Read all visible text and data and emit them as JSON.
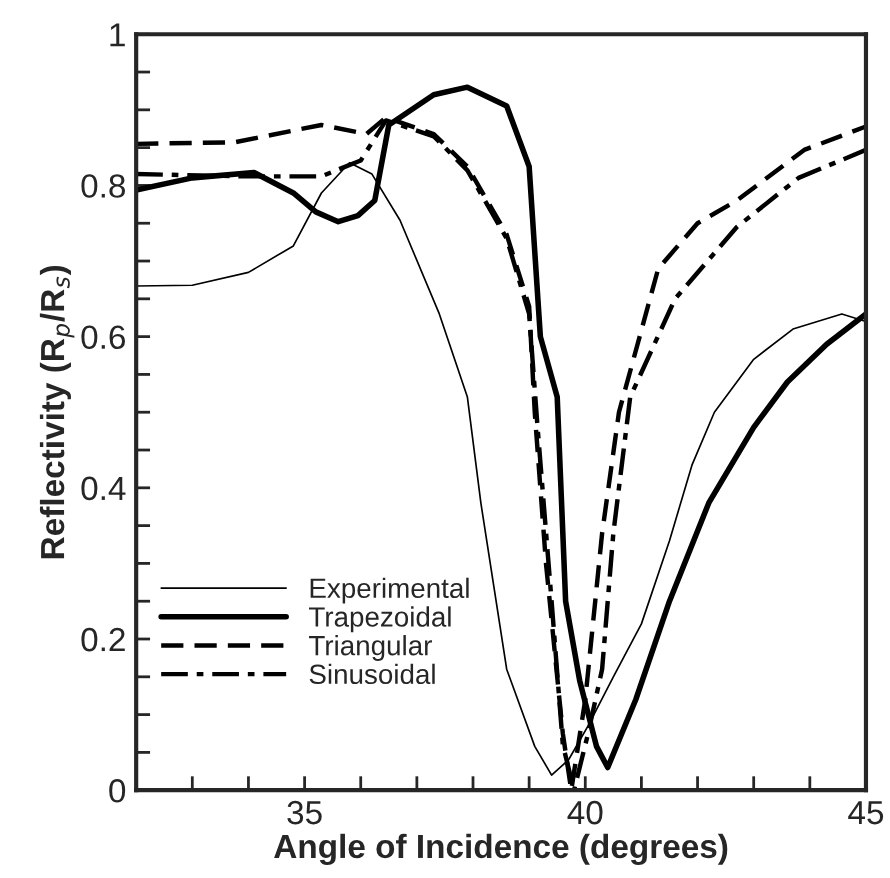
{
  "chart_data": {
    "type": "line",
    "xlabel": "Angle of Incidence (degrees)",
    "ylabel": "Reflectivity (R$_{p}$/R$_{s}$)",
    "xlim": [
      32,
      45
    ],
    "ylim": [
      0,
      1
    ],
    "xticks": [
      {
        "value": 33,
        "label": null
      },
      {
        "value": 34,
        "label": null
      },
      35,
      {
        "value": 36,
        "label": null
      },
      {
        "value": 37,
        "label": null
      },
      {
        "value": 38,
        "label": null
      },
      {
        "value": 39,
        "label": null
      },
      40,
      {
        "value": 41,
        "label": null
      },
      {
        "value": 42,
        "label": null
      },
      {
        "value": 43,
        "label": null
      },
      {
        "value": 44,
        "label": null
      },
      45
    ],
    "yticks": [
      0,
      {
        "value": 0.05,
        "label": null
      },
      {
        "value": 0.1,
        "label": null
      },
      {
        "value": 0.15,
        "label": null
      },
      0.2,
      {
        "value": 0.25,
        "label": null
      },
      {
        "value": 0.3,
        "label": null
      },
      {
        "value": 0.35,
        "label": null
      },
      0.4,
      {
        "value": 0.45,
        "label": null
      },
      {
        "value": 0.5,
        "label": null
      },
      {
        "value": 0.55,
        "label": null
      },
      0.6,
      {
        "value": 0.65,
        "label": null
      },
      {
        "value": 0.7,
        "label": null
      },
      {
        "value": 0.75,
        "label": null
      },
      0.8,
      {
        "value": 0.85,
        "label": null
      },
      {
        "value": 0.9,
        "label": null
      },
      {
        "value": 0.95,
        "label": null
      },
      1
    ],
    "grid": false,
    "legend": "lower left",
    "marker": "none",
    "series": [
      {
        "name": "Experimental",
        "color": "#000000",
        "line_style": "solid",
        "x": [
          32,
          33,
          34.0,
          34.8,
          35.3,
          35.8,
          36.2,
          36.7,
          37.4,
          37.9,
          38.14,
          38.6,
          39.1,
          39.4,
          39.7,
          40.05,
          40.5,
          41.0,
          41.5,
          41.9,
          42.3,
          43.0,
          43.7,
          44.57,
          45
        ],
        "values": [
          0.667,
          0.668,
          0.685,
          0.72,
          0.79,
          0.83,
          0.815,
          0.754,
          0.63,
          0.52,
          0.38,
          0.16,
          0.058,
          0.02,
          0.04,
          0.085,
          0.15,
          0.22,
          0.33,
          0.43,
          0.5,
          0.57,
          0.61,
          0.63,
          0.62
        ]
      },
      {
        "name": "Trapezoidal",
        "color": "#000000",
        "line_style": "solid",
        "x": [
          32,
          33,
          34.1,
          34.8,
          35.2,
          35.6,
          35.95,
          36.25,
          36.5,
          37.3,
          37.9,
          38.6,
          39.0,
          39.2,
          39.5,
          39.65,
          39.9,
          40.2,
          40.4,
          40.9,
          41.5,
          42.2,
          43.0,
          43.6,
          44.3,
          45
        ],
        "values": [
          0.794,
          0.81,
          0.817,
          0.79,
          0.765,
          0.752,
          0.76,
          0.78,
          0.88,
          0.92,
          0.93,
          0.905,
          0.825,
          0.6,
          0.52,
          0.25,
          0.145,
          0.058,
          0.03,
          0.12,
          0.25,
          0.38,
          0.48,
          0.54,
          0.59,
          0.63
        ]
      },
      {
        "name": "Triangular",
        "color": "#000000",
        "line_style": "dashed",
        "x": [
          32,
          33.75,
          35.3,
          36.1,
          36.45,
          37.3,
          37.9,
          38.6,
          39.0,
          39.1,
          39.3,
          39.6,
          39.75,
          40.0,
          40.3,
          40.6,
          41.3,
          42.0,
          42.7,
          43.9,
          45
        ],
        "values": [
          0.855,
          0.857,
          0.88,
          0.868,
          0.89,
          0.868,
          0.825,
          0.735,
          0.64,
          0.5,
          0.3,
          0.075,
          0.0,
          0.12,
          0.34,
          0.5,
          0.69,
          0.75,
          0.78,
          0.847,
          0.878
        ]
      },
      {
        "name": "Sinusoidal",
        "color": "#000000",
        "line_style": "dashdot",
        "x": [
          32,
          34.0,
          35.3,
          36.0,
          36.45,
          37.3,
          37.9,
          38.6,
          39.0,
          39.15,
          39.4,
          39.6,
          39.8,
          40.05,
          40.3,
          40.5,
          40.8,
          41.6,
          42.7,
          43.8,
          45
        ],
        "values": [
          0.815,
          0.812,
          0.812,
          0.833,
          0.886,
          0.865,
          0.82,
          0.73,
          0.63,
          0.48,
          0.25,
          0.06,
          0.0,
          0.075,
          0.16,
          0.34,
          0.52,
          0.65,
          0.745,
          0.81,
          0.847
        ]
      }
    ]
  }
}
